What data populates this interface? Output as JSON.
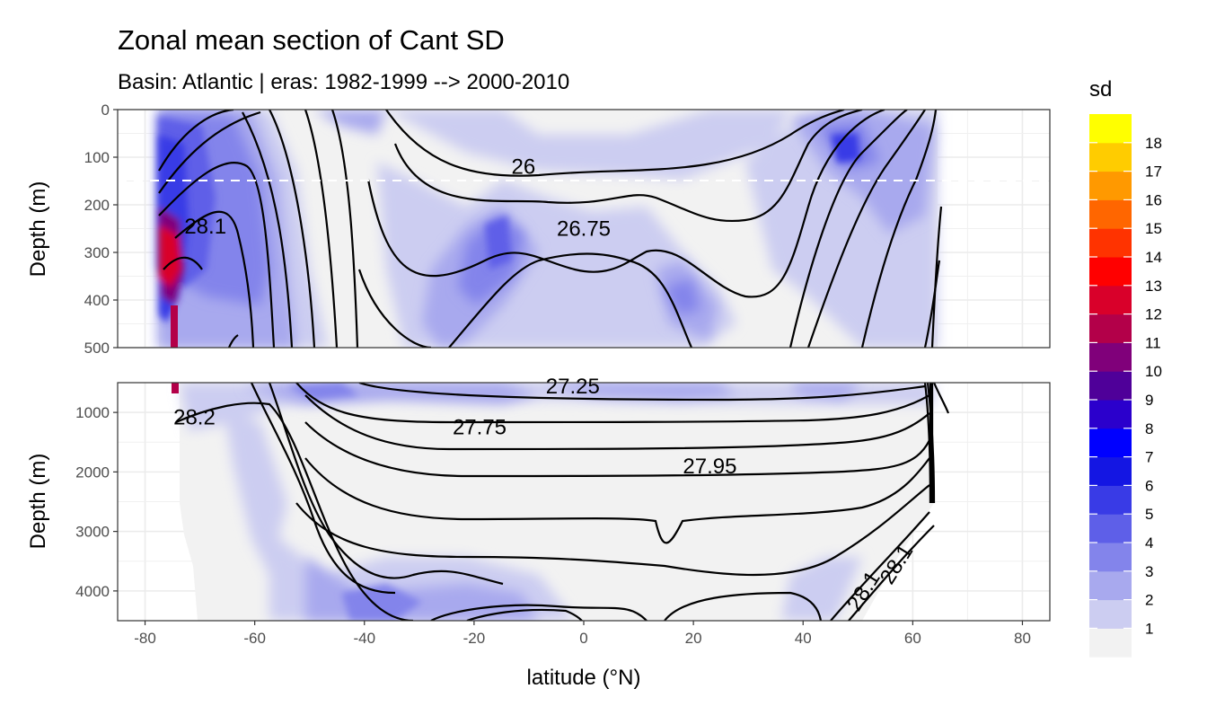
{
  "chart_data": {
    "type": "heatmap",
    "title": "Zonal mean section of Cant SD",
    "subtitle": "Basin: Atlantic | eras: 1982-1999 --> 2000-2010",
    "xlabel": "latitude (°N)",
    "ylabel_top": "Depth (m)",
    "ylabel_bottom": "Depth (m)",
    "xlim": [
      -85,
      85
    ],
    "x_ticks": [
      -80,
      -60,
      -40,
      -20,
      0,
      20,
      40,
      60,
      80
    ],
    "x_tick_labels": [
      "-80",
      "-60",
      "-40",
      "-20",
      "0",
      "20",
      "40",
      "60",
      "80"
    ],
    "grid": true,
    "panels": [
      {
        "name": "upper",
        "ylim": [
          0,
          500
        ],
        "y_ticks": [
          0,
          100,
          200,
          300,
          400,
          500
        ],
        "y_tick_labels": [
          "0",
          "100",
          "200",
          "300",
          "400",
          "500"
        ]
      },
      {
        "name": "lower",
        "ylim": [
          500,
          4500
        ],
        "y_ticks": [
          1000,
          2000,
          3000,
          4000
        ],
        "y_tick_labels": [
          "1000",
          "2000",
          "3000",
          "4000"
        ]
      }
    ],
    "reference_line_depth": 150,
    "legend": {
      "title": "sd",
      "position": "right",
      "labels": [
        "1",
        "2",
        "3",
        "4",
        "5",
        "6",
        "7",
        "8",
        "9",
        "10",
        "11",
        "12",
        "13",
        "14",
        "15",
        "16",
        "17",
        "18"
      ],
      "colors": [
        "#f2f2f2",
        "#cccdf1",
        "#a8a9ee",
        "#8384eb",
        "#5e5fe8",
        "#393be6",
        "#1416e3",
        "#0000ff",
        "#2b00cc",
        "#4f0099",
        "#80007a",
        "#b30049",
        "#d9002a",
        "#ff0000",
        "#ff3300",
        "#ff6600",
        "#ff9900",
        "#ffcc00",
        "#ffff00"
      ]
    },
    "contour_labels": [
      {
        "text": "26",
        "lat": -11,
        "depth": 120
      },
      {
        "text": "26.75",
        "lat": 0,
        "depth": 250
      },
      {
        "text": "28.1",
        "lat": -69,
        "depth": 245
      },
      {
        "text": "27.25",
        "lat": -2,
        "depth": 560
      },
      {
        "text": "28.2",
        "lat": -71,
        "depth": 1080
      },
      {
        "text": "27.75",
        "lat": -19,
        "depth": 1250
      },
      {
        "text": "27.95",
        "lat": 23,
        "depth": 1900
      },
      {
        "text": "28.1",
        "lat": 51,
        "depth": 4000
      },
      {
        "text": "28.1",
        "lat": 57,
        "depth": 3550
      }
    ]
  }
}
